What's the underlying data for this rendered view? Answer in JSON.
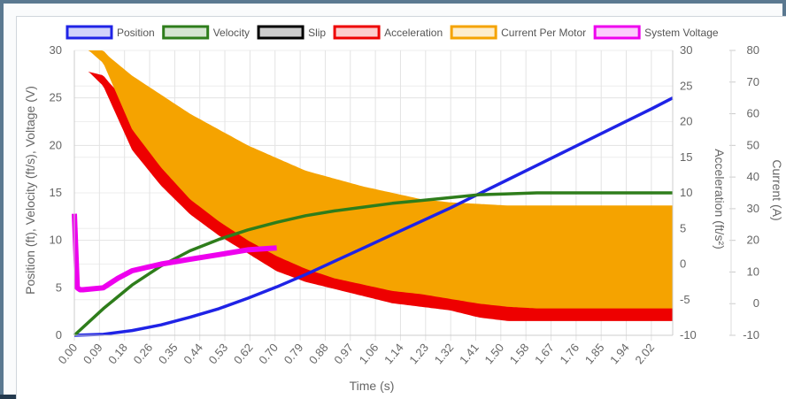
{
  "chart_data": {
    "type": "line",
    "title": "",
    "xlabel": "Time (s)",
    "x_ticks": [
      "0.00",
      "0.09",
      "0.18",
      "0.26",
      "0.35",
      "0.44",
      "0.53",
      "0.62",
      "0.70",
      "0.79",
      "0.88",
      "0.97",
      "1.06",
      "1.14",
      "1.23",
      "1.32",
      "1.41",
      "1.50",
      "1.58",
      "1.67",
      "1.76",
      "1.85",
      "1.94",
      "2.02"
    ],
    "xlim": [
      0,
      2.07
    ],
    "legend_position": "top",
    "grid": true,
    "axes": {
      "left": {
        "label": "Position (ft), Velocity (ft/s), Voltage (V)",
        "range": [
          0,
          30
        ],
        "ticks": [
          "0",
          "5",
          "10",
          "15",
          "20",
          "25",
          "30"
        ]
      },
      "accel": {
        "label": "Acceleration (ft/s²)",
        "range": [
          -10,
          30
        ],
        "ticks": [
          "-10",
          "-5",
          "0",
          "5",
          "10",
          "15",
          "20",
          "25",
          "30"
        ]
      },
      "current": {
        "label": "Current (A)",
        "range": [
          -10,
          80
        ],
        "ticks": [
          "-10",
          "0",
          "10",
          "20",
          "30",
          "40",
          "50",
          "60",
          "70",
          "80"
        ]
      }
    },
    "series": [
      {
        "name": "Position",
        "axis": "left",
        "color": "#1f23e6",
        "x": [
          0,
          0.1,
          0.2,
          0.3,
          0.4,
          0.5,
          0.6,
          0.7,
          0.8,
          0.9,
          1.0,
          1.1,
          1.2,
          1.3,
          1.4,
          1.5,
          1.6,
          1.7,
          1.8,
          1.9,
          2.0,
          2.07
        ],
        "y": [
          0,
          0.1,
          0.5,
          1.1,
          1.9,
          2.8,
          3.9,
          5.1,
          6.4,
          7.8,
          9.2,
          10.6,
          12.0,
          13.4,
          14.9,
          16.4,
          17.9,
          19.4,
          20.9,
          22.4,
          23.9,
          25.0
        ]
      },
      {
        "name": "Velocity",
        "axis": "left",
        "color": "#2e7d1b",
        "x": [
          0,
          0.1,
          0.2,
          0.3,
          0.4,
          0.5,
          0.6,
          0.7,
          0.8,
          0.9,
          1.0,
          1.1,
          1.2,
          1.3,
          1.4,
          1.5,
          1.6,
          1.8,
          2.07
        ],
        "y": [
          0,
          2.8,
          5.3,
          7.3,
          8.9,
          10.1,
          11.1,
          11.9,
          12.6,
          13.1,
          13.5,
          13.9,
          14.2,
          14.5,
          14.8,
          14.9,
          15.0,
          15.0,
          15.0
        ]
      },
      {
        "name": "Slip",
        "axis": "left",
        "color": "#000000",
        "x": [],
        "y": []
      },
      {
        "name": "Acceleration",
        "axis": "accel",
        "color": "#ee0000",
        "upper_x": [
          0,
          0.1,
          0.12,
          0.2,
          0.3,
          0.4,
          0.5,
          0.6,
          0.7,
          0.8,
          0.9,
          1.0,
          1.1,
          1.15,
          1.2,
          1.3,
          1.4,
          1.5,
          1.6,
          2.07
        ],
        "upper_y": [
          27.5,
          26.5,
          25.5,
          22,
          19,
          16.5,
          14,
          12.2,
          10.5,
          9.2,
          8.3,
          7.5,
          7.0,
          6.8,
          6.3,
          6.0,
          5.7,
          5.5,
          5.5,
          5.5
        ],
        "lower_x": [
          0,
          0.05,
          0.1,
          0.2,
          0.3,
          0.4,
          0.5,
          0.6,
          0.7,
          0.8,
          0.9,
          1.0,
          1.1,
          1.2,
          1.3,
          1.4,
          1.5,
          1.6,
          2.07
        ],
        "lower_y": [
          27.5,
          27,
          25,
          16,
          11,
          7,
          4,
          1.5,
          -1,
          -2.5,
          -3.5,
          -4.5,
          -5.5,
          -6,
          -6.5,
          -7.5,
          -8,
          -8,
          -8
        ]
      },
      {
        "name": "Current Per Motor",
        "axis": "current",
        "color": "#f5a300",
        "upper_x": [
          0,
          0.1,
          0.12,
          0.2,
          0.3,
          0.4,
          0.5,
          0.6,
          0.7,
          0.8,
          0.9,
          1.0,
          1.1,
          1.15,
          1.2,
          1.3,
          1.4,
          1.5,
          1.6,
          2.07
        ],
        "upper_y": [
          80,
          80,
          78,
          72,
          66,
          60,
          55,
          50,
          46,
          42,
          39.5,
          37,
          35,
          34,
          33,
          32,
          31.5,
          31,
          31,
          31
        ],
        "lower_x": [
          0,
          0.05,
          0.1,
          0.2,
          0.3,
          0.4,
          0.5,
          0.6,
          0.7,
          0.8,
          0.9,
          1.0,
          1.1,
          1.2,
          1.3,
          1.4,
          1.5,
          1.6,
          2.07
        ],
        "lower_y": [
          80,
          80,
          76,
          55,
          43,
          33,
          26,
          20,
          15,
          11,
          8,
          6,
          4,
          3,
          1.5,
          0,
          -1,
          -1.5,
          -1.5
        ]
      },
      {
        "name": "System Voltage",
        "axis": "left",
        "color": "#ee00ee",
        "x": [
          0,
          0.01,
          0.02,
          0.03,
          0.1,
          0.15,
          0.2,
          0.3,
          0.4,
          0.5,
          0.6,
          0.7
        ],
        "y": [
          12.8,
          5,
          4.8,
          4.8,
          5,
          6,
          6.8,
          7.5,
          8,
          8.5,
          9,
          9.2
        ]
      }
    ]
  }
}
